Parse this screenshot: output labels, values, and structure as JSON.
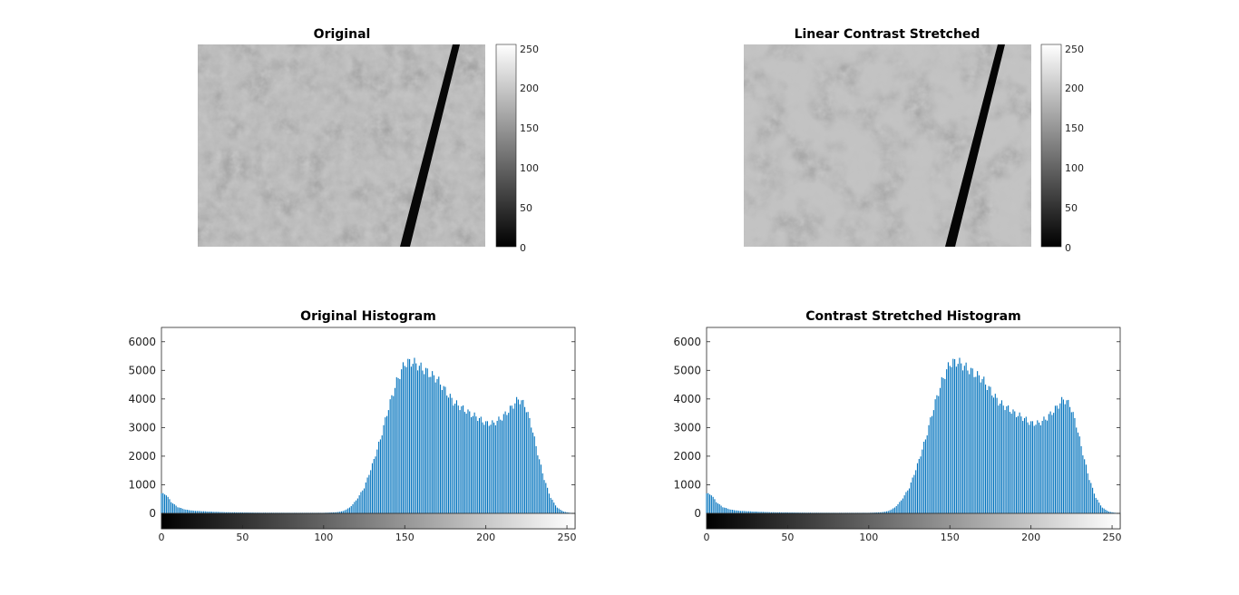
{
  "figure": {
    "panels": [
      {
        "title": "Original"
      },
      {
        "title": "Linear Contrast Stretched"
      },
      {
        "title": "Original Histogram"
      },
      {
        "title": "Contrast Stretched Histogram"
      }
    ],
    "colorbar": {
      "ticks": [
        "0",
        "50",
        "100",
        "150",
        "200",
        "250"
      ]
    }
  },
  "colors": {
    "bar": "#0072BD",
    "axis": "#262626"
  },
  "chart_data": [
    {
      "type": "image",
      "title": "Original",
      "colormap": "gray",
      "clim": [
        0,
        255
      ],
      "colorbar": true
    },
    {
      "type": "image",
      "title": "Linear Contrast Stretched",
      "colormap": "gray",
      "clim": [
        0,
        255
      ],
      "colorbar": true
    },
    {
      "type": "bar",
      "title": "Original Histogram",
      "xlabel": "",
      "ylabel": "",
      "xlim": [
        0,
        255
      ],
      "ylim": [
        0,
        6500
      ],
      "xticks": [
        0,
        50,
        100,
        150,
        200,
        250
      ],
      "yticks": [
        0,
        1000,
        2000,
        3000,
        4000,
        5000,
        6000
      ],
      "x_gray_strip": true,
      "bins_anchor": [
        [
          0,
          700
        ],
        [
          3,
          650
        ],
        [
          6,
          400
        ],
        [
          10,
          220
        ],
        [
          15,
          130
        ],
        [
          20,
          90
        ],
        [
          30,
          60
        ],
        [
          40,
          40
        ],
        [
          60,
          25
        ],
        [
          80,
          20
        ],
        [
          100,
          20
        ],
        [
          108,
          40
        ],
        [
          112,
          80
        ],
        [
          116,
          200
        ],
        [
          120,
          450
        ],
        [
          125,
          900
        ],
        [
          130,
          1700
        ],
        [
          135,
          2600
        ],
        [
          140,
          3700
        ],
        [
          145,
          4600
        ],
        [
          150,
          5250
        ],
        [
          155,
          5300
        ],
        [
          160,
          5100
        ],
        [
          165,
          4900
        ],
        [
          170,
          4700
        ],
        [
          175,
          4300
        ],
        [
          180,
          3900
        ],
        [
          185,
          3700
        ],
        [
          190,
          3500
        ],
        [
          195,
          3350
        ],
        [
          200,
          3150
        ],
        [
          205,
          3150
        ],
        [
          210,
          3350
        ],
        [
          215,
          3650
        ],
        [
          220,
          4000
        ],
        [
          224,
          3800
        ],
        [
          228,
          3100
        ],
        [
          232,
          2100
        ],
        [
          236,
          1200
        ],
        [
          240,
          550
        ],
        [
          244,
          200
        ],
        [
          248,
          60
        ],
        [
          252,
          20
        ],
        [
          255,
          10
        ]
      ]
    },
    {
      "type": "bar",
      "title": "Contrast Stretched Histogram",
      "xlabel": "",
      "ylabel": "",
      "xlim": [
        0,
        255
      ],
      "ylim": [
        0,
        6500
      ],
      "xticks": [
        0,
        50,
        100,
        150,
        200,
        250
      ],
      "yticks": [
        0,
        1000,
        2000,
        3000,
        4000,
        5000,
        6000
      ],
      "x_gray_strip": true,
      "bins_anchor": [
        [
          0,
          700
        ],
        [
          3,
          650
        ],
        [
          6,
          400
        ],
        [
          10,
          220
        ],
        [
          15,
          130
        ],
        [
          20,
          90
        ],
        [
          30,
          60
        ],
        [
          40,
          40
        ],
        [
          60,
          25
        ],
        [
          80,
          20
        ],
        [
          100,
          20
        ],
        [
          108,
          40
        ],
        [
          112,
          80
        ],
        [
          116,
          200
        ],
        [
          120,
          450
        ],
        [
          125,
          900
        ],
        [
          130,
          1700
        ],
        [
          135,
          2600
        ],
        [
          140,
          3700
        ],
        [
          145,
          4600
        ],
        [
          150,
          5250
        ],
        [
          155,
          5300
        ],
        [
          160,
          5100
        ],
        [
          165,
          4900
        ],
        [
          170,
          4700
        ],
        [
          175,
          4300
        ],
        [
          180,
          3900
        ],
        [
          185,
          3700
        ],
        [
          190,
          3500
        ],
        [
          195,
          3350
        ],
        [
          200,
          3150
        ],
        [
          205,
          3150
        ],
        [
          210,
          3350
        ],
        [
          215,
          3650
        ],
        [
          220,
          4000
        ],
        [
          224,
          3800
        ],
        [
          228,
          3100
        ],
        [
          232,
          2100
        ],
        [
          236,
          1200
        ],
        [
          240,
          550
        ],
        [
          244,
          200
        ],
        [
          248,
          60
        ],
        [
          252,
          20
        ],
        [
          255,
          10
        ]
      ]
    }
  ]
}
